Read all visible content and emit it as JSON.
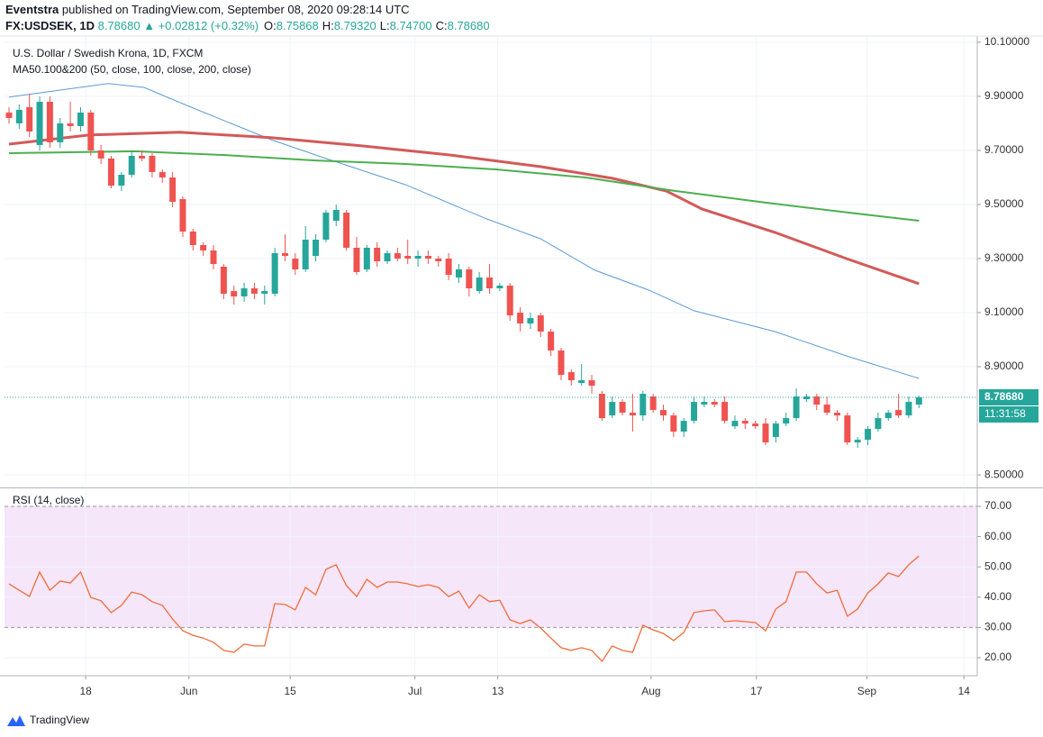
{
  "header": {
    "publisher": "Eventstra",
    "published_text": "published on TradingView.com, September 08, 2020 09:28:14 UTC",
    "symbol": "FX:USDSEK, 1D",
    "price": "8.78680",
    "change": "+0.02812 (+0.32%)",
    "ohlc": [
      {
        "label": "O:",
        "value": "8.75868"
      },
      {
        "label": "H:",
        "value": "8.79320"
      },
      {
        "label": "L:",
        "value": "8.74700"
      },
      {
        "label": "C:",
        "value": "8.78680"
      }
    ]
  },
  "chart_data": [
    {
      "type": "candlestick",
      "title": "U.S. Dollar / Swedish Krona, 1D, FXCM",
      "subtitle": "MA50.100&200 (50, close, 100, close, 200, close)",
      "up_color": "#26a69a",
      "down_color": "#ef5350",
      "open": [
        9.84,
        9.8,
        9.86,
        9.72,
        9.88,
        9.73,
        9.8,
        9.79,
        9.84,
        9.7,
        9.67,
        9.57,
        9.61,
        9.68,
        9.68,
        9.62,
        9.6,
        9.52,
        9.4,
        9.35,
        9.33,
        9.27,
        9.18,
        9.16,
        9.19,
        9.17,
        9.17,
        9.32,
        9.3,
        9.26,
        9.31,
        9.37,
        9.44,
        9.47,
        9.34,
        9.26,
        9.34,
        9.29,
        9.32,
        9.31,
        9.3,
        9.31,
        9.3,
        9.3,
        9.23,
        9.26,
        9.18,
        9.23,
        9.19,
        9.2,
        9.1,
        9.06,
        9.09,
        9.03,
        8.96,
        8.88,
        8.84,
        8.85,
        8.8,
        8.72,
        8.77,
        8.73,
        8.72,
        8.79,
        8.74,
        8.72,
        8.66,
        8.7,
        8.76,
        8.77,
        8.77,
        8.68,
        8.7,
        8.69,
        8.69,
        8.64,
        8.69,
        8.71,
        8.78,
        8.79,
        8.76,
        8.73,
        8.72,
        8.62,
        8.63,
        8.67,
        8.71,
        8.74,
        8.72,
        8.76
      ],
      "high": [
        9.86,
        9.87,
        9.91,
        9.9,
        9.9,
        9.82,
        9.88,
        9.86,
        9.85,
        9.72,
        9.68,
        9.62,
        9.7,
        9.7,
        9.69,
        9.63,
        9.62,
        9.53,
        9.41,
        9.36,
        9.35,
        9.28,
        9.2,
        9.21,
        9.21,
        9.2,
        9.34,
        9.39,
        9.32,
        9.42,
        9.39,
        9.48,
        9.5,
        9.48,
        9.38,
        9.35,
        9.36,
        9.33,
        9.34,
        9.37,
        9.33,
        9.33,
        9.31,
        9.32,
        9.28,
        9.27,
        9.25,
        9.28,
        9.21,
        9.21,
        9.12,
        9.1,
        9.1,
        9.04,
        8.97,
        8.89,
        8.91,
        8.87,
        8.81,
        8.79,
        8.78,
        8.8,
        8.81,
        8.8,
        8.76,
        8.73,
        8.71,
        8.79,
        8.79,
        8.78,
        8.79,
        8.72,
        8.71,
        8.7,
        8.71,
        8.7,
        8.73,
        8.82,
        8.8,
        8.8,
        8.79,
        8.74,
        8.73,
        8.64,
        8.68,
        8.73,
        8.74,
        8.8,
        8.79,
        8.7932
      ],
      "low": [
        9.8,
        9.78,
        9.75,
        9.7,
        9.71,
        9.71,
        9.77,
        9.77,
        9.68,
        9.65,
        9.56,
        9.55,
        9.6,
        9.66,
        9.6,
        9.58,
        9.49,
        9.38,
        9.33,
        9.31,
        9.26,
        9.15,
        9.13,
        9.14,
        9.15,
        9.13,
        9.16,
        9.29,
        9.24,
        9.25,
        9.29,
        9.36,
        9.42,
        9.33,
        9.24,
        9.25,
        9.27,
        9.28,
        9.29,
        9.28,
        9.27,
        9.28,
        9.27,
        9.22,
        9.21,
        9.16,
        9.17,
        9.17,
        9.18,
        9.07,
        9.03,
        9.04,
        9.01,
        8.94,
        8.85,
        8.83,
        8.83,
        8.8,
        8.7,
        8.71,
        8.72,
        8.66,
        8.7,
        8.73,
        8.7,
        8.64,
        8.64,
        8.69,
        8.75,
        8.75,
        8.69,
        8.67,
        8.67,
        8.67,
        8.61,
        8.62,
        8.68,
        8.7,
        8.77,
        8.74,
        8.72,
        8.7,
        8.61,
        8.6,
        8.61,
        8.66,
        8.7,
        8.71,
        8.71,
        8.747
      ],
      "close": [
        9.82,
        9.85,
        9.77,
        9.88,
        9.73,
        9.8,
        9.79,
        9.84,
        9.7,
        9.67,
        9.57,
        9.61,
        9.68,
        9.67,
        9.62,
        9.6,
        9.51,
        9.4,
        9.35,
        9.33,
        9.28,
        9.17,
        9.16,
        9.19,
        9.17,
        9.18,
        9.32,
        9.31,
        9.26,
        9.37,
        9.37,
        9.47,
        9.48,
        9.34,
        9.25,
        9.34,
        9.29,
        9.32,
        9.3,
        9.3,
        9.31,
        9.3,
        9.29,
        9.24,
        9.26,
        9.19,
        9.23,
        9.19,
        9.2,
        9.09,
        9.06,
        9.08,
        9.03,
        8.96,
        8.87,
        8.85,
        8.85,
        8.83,
        8.71,
        8.77,
        8.73,
        8.72,
        8.8,
        8.74,
        8.72,
        8.66,
        8.7,
        8.77,
        8.77,
        8.76,
        8.7,
        8.7,
        8.69,
        8.68,
        8.62,
        8.69,
        8.71,
        8.79,
        8.79,
        8.76,
        8.73,
        8.72,
        8.62,
        8.63,
        8.67,
        8.71,
        8.73,
        8.72,
        8.77,
        8.7868
      ],
      "overlays": [
        {
          "color": "#5b9bd5",
          "width": 1,
          "x": [
            0,
            9.7,
            13.2,
            17.6,
            25.6,
            30.8,
            38.8,
            46.7,
            52,
            57.3,
            62.6,
            67,
            74.9,
            81.9,
            89
          ],
          "values": [
            9.897,
            9.947,
            9.933,
            9.863,
            9.74,
            9.673,
            9.573,
            9.447,
            9.373,
            9.257,
            9.183,
            9.107,
            9.03,
            8.94,
            8.857
          ]
        },
        {
          "color": "#d25a58",
          "width": 3,
          "x": [
            0,
            7.9,
            16.7,
            25.6,
            34.4,
            43.2,
            52,
            59,
            64.3,
            67.8,
            74.9,
            81.9,
            89
          ],
          "values": [
            9.723,
            9.757,
            9.767,
            9.747,
            9.717,
            9.683,
            9.64,
            9.597,
            9.55,
            9.483,
            9.397,
            9.3,
            9.207
          ]
        },
        {
          "color": "#4caf50",
          "width": 2,
          "x": [
            0,
            12.3,
            21.1,
            30,
            38.8,
            47.6,
            56.4,
            65.2,
            74,
            82.8,
            89
          ],
          "values": [
            9.69,
            9.697,
            9.683,
            9.663,
            9.65,
            9.63,
            9.6,
            9.55,
            9.507,
            9.467,
            9.44
          ]
        }
      ],
      "xlim": [
        -0.44,
        94.7
      ],
      "xticks": [
        {
          "value": 7.5,
          "label": "18"
        },
        {
          "value": 17.6,
          "label": "Jun"
        },
        {
          "value": 27.5,
          "label": "15"
        },
        {
          "value": 39.7,
          "label": "Jul"
        },
        {
          "value": 47.8,
          "label": "13"
        },
        {
          "value": 62.8,
          "label": "Aug"
        },
        {
          "value": 73.1,
          "label": "17"
        },
        {
          "value": 83.9,
          "label": "Sep"
        },
        {
          "value": 93.4,
          "label": "14"
        }
      ],
      "ylim": [
        8.457,
        10.123
      ],
      "yticks": [
        {
          "value": 10.1,
          "label": "10.10000"
        },
        {
          "value": 9.9,
          "label": "9.90000"
        },
        {
          "value": 9.7,
          "label": "9.70000"
        },
        {
          "value": 9.5,
          "label": "9.50000"
        },
        {
          "value": 9.3,
          "label": "9.30000"
        },
        {
          "value": 9.1,
          "label": "9.10000"
        },
        {
          "value": 8.9,
          "label": "8.90000"
        },
        {
          "value": 8.5,
          "label": "8.50000"
        }
      ],
      "grid": true,
      "last_price_label": "8.78680",
      "countdown": "11:31:58"
    },
    {
      "type": "line",
      "title": "RSI (14, close)",
      "color": "#f26b38",
      "values": [
        44.4,
        42.3,
        40.2,
        48.3,
        42.3,
        45.3,
        44.7,
        48.3,
        39.9,
        38.8,
        34.9,
        37.3,
        41.7,
        40.8,
        38.5,
        37.3,
        32.8,
        28.9,
        27.4,
        26.5,
        25.1,
        22.4,
        21.8,
        24.5,
        23.9,
        23.9,
        37.9,
        37.6,
        35.8,
        43.2,
        40.8,
        49.2,
        50.7,
        43.8,
        40.2,
        45.9,
        43.2,
        45,
        45,
        44.4,
        43.5,
        44.1,
        43.2,
        40.2,
        42,
        36.4,
        40.8,
        38.5,
        39,
        32.5,
        31.3,
        32.5,
        29.8,
        26.5,
        23.3,
        22.4,
        23.3,
        22.4,
        18.8,
        23.9,
        22.4,
        21.8,
        30.7,
        29.2,
        28,
        25.7,
        28.3,
        34.9,
        35.5,
        35.8,
        31.9,
        32.2,
        31.9,
        31.6,
        28.9,
        36.1,
        38.5,
        48.3,
        48.3,
        44.4,
        41.4,
        42.3,
        33.7,
        36.1,
        41.4,
        44.4,
        48,
        46.8,
        50.7,
        53.6
      ],
      "band": [
        30,
        70
      ],
      "band_color": "#f5e6fa",
      "xlim": [
        -0.44,
        94.7
      ],
      "ylim": [
        14.05,
        75.65
      ],
      "yticks": [
        {
          "value": 70,
          "label": "70.00"
        },
        {
          "value": 60,
          "label": "60.00"
        },
        {
          "value": 50,
          "label": "50.00"
        },
        {
          "value": 40,
          "label": "40.00"
        },
        {
          "value": 30,
          "label": "30.00"
        },
        {
          "value": 20,
          "label": "20.00"
        }
      ],
      "grid": true
    }
  ],
  "footer": {
    "brand": "TradingView"
  }
}
